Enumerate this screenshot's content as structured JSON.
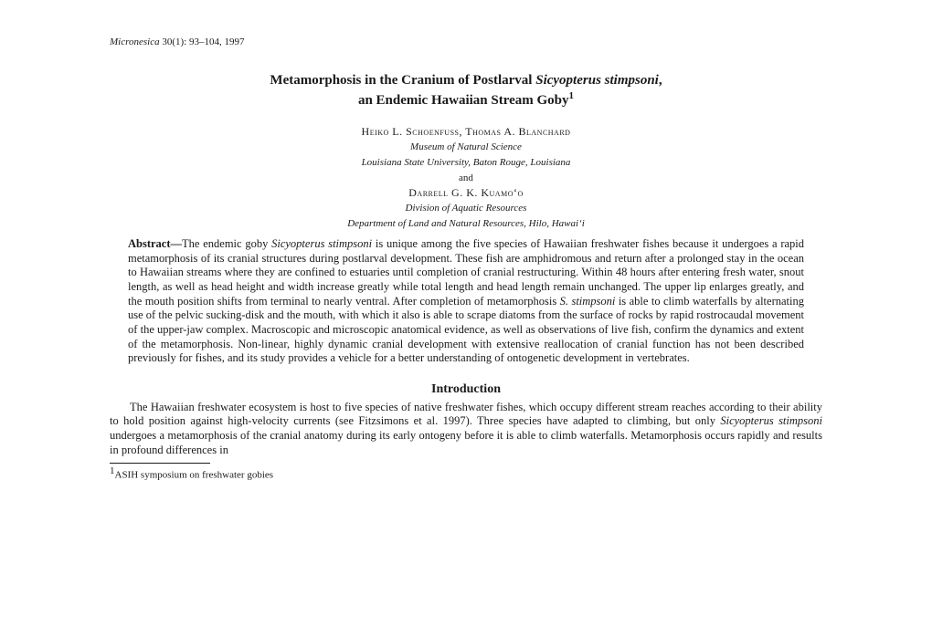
{
  "journal": {
    "name": "Micronesica",
    "citation": " 30(1): 93–104, 1997"
  },
  "title_line1_pre": "Metamorphosis in the Cranium of Postlarval ",
  "title_line1_italic": "Sicyopterus stimpsoni",
  "title_line1_post": ",",
  "title_line2": "an Endemic Hawaiian Stream Goby",
  "title_sup": "1",
  "authors1": "Heiko L. Schoenfuss, Thomas A. Blanchard",
  "affiliation1a": "Museum of Natural Science",
  "affiliation1b": "Louisiana State University, Baton Rouge, Louisiana",
  "connector": "and",
  "authors2": "Darrell G. K. Kuamoʻo",
  "affiliation2a": "Division of Aquatic Resources",
  "affiliation2b": "Department of Land and Natural Resources, Hilo, Hawaiʻi",
  "abstract_label": "Abstract—",
  "abstract_pre": "The endemic goby ",
  "abstract_sp1": "Sicyopterus stimpsoni",
  "abstract_mid1": " is unique among the five species of Hawaiian freshwater fishes because it undergoes a rapid metamorphosis of its cranial structures during postlarval development. These fish are amphidromous and return after a prolonged stay in the ocean to Hawaiian streams where they are confined to estuaries until completion of cranial restructuring. Within 48 hours after entering fresh water, snout length, as well as head height and width increase greatly while total length and head length remain unchanged. The upper lip enlarges greatly, and the mouth position shifts from terminal to nearly ventral. After completion of metamorphosis ",
  "abstract_sp2": "S. stimpsoni",
  "abstract_mid2": " is able to climb waterfalls by alternating use of the pelvic sucking-disk and the mouth, with which it also is able to scrape diatoms from the surface of rocks by rapid rostrocaudal movement of the upper-jaw complex. Macroscopic and microscopic anatomical evidence, as well as observations of live fish, confirm the dynamics and extent of the metamorphosis. Non-linear, highly dynamic cranial development with extensive reallocation of cranial function has not been described previously for fishes, and its study provides a vehicle for a better understanding of ontogenetic development in vertebrates.",
  "section_heading": "Introduction",
  "intro_pre": "The Hawaiian freshwater ecosystem is host to five species of native freshwater fishes, which occupy different stream reaches according to their ability to hold position against high-velocity currents (see Fitzsimons et al. 1997). Three species have adapted to climbing, but only ",
  "intro_sp": "Sicyopterus stimpsoni",
  "intro_post": " undergoes a metamorphosis of the cranial anatomy during its early ontogeny before it is able to climb waterfalls. Metamorphosis occurs rapidly and results in profound differences in",
  "footnote_sup": "1",
  "footnote_text": "ASIH symposium on freshwater gobies"
}
